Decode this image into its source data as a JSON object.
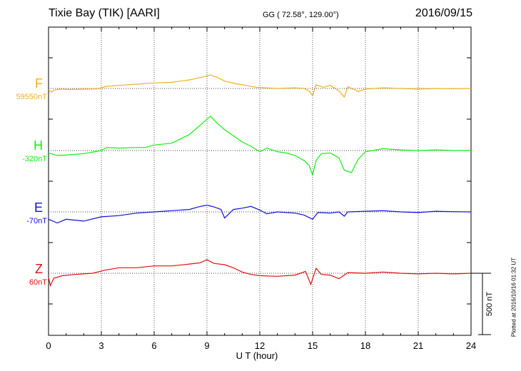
{
  "header": {
    "title": "Tixie Bay (TIK)  [AARI]",
    "coords": "GG ( 72.58°, 129.00°)",
    "date": "2016/09/15"
  },
  "scale_label": "500 nT",
  "plotted_note": "Plotted at 2016/10/16 01:32 UT",
  "chart_data": {
    "type": "line",
    "xlabel": "U T (hour)",
    "xlim": [
      0,
      24
    ],
    "x_ticks": [
      "0",
      "3",
      "6",
      "9",
      "12",
      "15",
      "18",
      "21",
      "24"
    ],
    "scale_bar_nT": 500,
    "colors": {
      "F": "#f0b020",
      "H": "#11ee11",
      "E": "#1010dd",
      "Z": "#e01010"
    },
    "series": [
      {
        "name": "F",
        "baseline": "59550nT",
        "color": "#f0b020",
        "points": [
          [
            0,
            -10
          ],
          [
            0.15,
            -30
          ],
          [
            0.3,
            -15
          ],
          [
            0.6,
            -5
          ],
          [
            1.2,
            -8
          ],
          [
            2,
            -6
          ],
          [
            2.8,
            -3
          ],
          [
            3.2,
            15
          ],
          [
            4,
            25
          ],
          [
            5,
            35
          ],
          [
            6,
            45
          ],
          [
            7,
            50
          ],
          [
            8,
            70
          ],
          [
            8.8,
            95
          ],
          [
            9.2,
            110
          ],
          [
            9.6,
            90
          ],
          [
            10,
            60
          ],
          [
            10.6,
            40
          ],
          [
            11.2,
            25
          ],
          [
            11.8,
            10
          ],
          [
            12.3,
            5
          ],
          [
            13,
            0
          ],
          [
            14,
            5
          ],
          [
            14.5,
            0
          ],
          [
            14.8,
            -20
          ],
          [
            15,
            -60
          ],
          [
            15.2,
            30
          ],
          [
            15.6,
            10
          ],
          [
            16,
            25
          ],
          [
            16.5,
            -20
          ],
          [
            16.8,
            -70
          ],
          [
            17,
            15
          ],
          [
            17.3,
            -5
          ],
          [
            17.6,
            -25
          ],
          [
            18,
            -5
          ],
          [
            19,
            5
          ],
          [
            20,
            0
          ],
          [
            21,
            -5
          ],
          [
            22,
            0
          ],
          [
            23,
            -2
          ],
          [
            24,
            0
          ]
        ]
      },
      {
        "name": "H",
        "baseline": "-320nT",
        "color": "#11ee11",
        "points": [
          [
            0,
            -20
          ],
          [
            0.5,
            -40
          ],
          [
            1.2,
            -35
          ],
          [
            2,
            -25
          ],
          [
            3,
            0
          ],
          [
            3.3,
            25
          ],
          [
            4,
            20
          ],
          [
            5,
            25
          ],
          [
            5.5,
            25
          ],
          [
            6,
            45
          ],
          [
            7,
            60
          ],
          [
            8,
            130
          ],
          [
            8.8,
            230
          ],
          [
            9.2,
            280
          ],
          [
            9.6,
            220
          ],
          [
            10,
            170
          ],
          [
            10.5,
            120
          ],
          [
            11,
            70
          ],
          [
            11.5,
            35
          ],
          [
            12,
            -10
          ],
          [
            12.4,
            20
          ],
          [
            13,
            -10
          ],
          [
            13.5,
            -20
          ],
          [
            14,
            -40
          ],
          [
            14.5,
            -80
          ],
          [
            14.8,
            -120
          ],
          [
            15,
            -200
          ],
          [
            15.2,
            -80
          ],
          [
            15.5,
            -25
          ],
          [
            16,
            -20
          ],
          [
            16.5,
            -60
          ],
          [
            16.8,
            -160
          ],
          [
            17.2,
            -180
          ],
          [
            17.6,
            -70
          ],
          [
            18,
            -10
          ],
          [
            19,
            15
          ],
          [
            20,
            5
          ],
          [
            21,
            0
          ],
          [
            22,
            5
          ],
          [
            23,
            0
          ],
          [
            24,
            2
          ]
        ]
      },
      {
        "name": "E",
        "baseline": "-70nT",
        "color": "#1010dd",
        "points": [
          [
            0,
            -60
          ],
          [
            0.5,
            -90
          ],
          [
            1,
            -60
          ],
          [
            2,
            -75
          ],
          [
            3,
            -40
          ],
          [
            4,
            -30
          ],
          [
            5,
            -10
          ],
          [
            6,
            0
          ],
          [
            7,
            10
          ],
          [
            8,
            20
          ],
          [
            8.5,
            40
          ],
          [
            9,
            55
          ],
          [
            9.4,
            40
          ],
          [
            9.8,
            20
          ],
          [
            10,
            -50
          ],
          [
            10.5,
            20
          ],
          [
            11,
            30
          ],
          [
            11.5,
            45
          ],
          [
            12,
            15
          ],
          [
            12.4,
            -15
          ],
          [
            13,
            0
          ],
          [
            14,
            -10
          ],
          [
            14.5,
            -25
          ],
          [
            15,
            -60
          ],
          [
            15.3,
            -5
          ],
          [
            16,
            -10
          ],
          [
            16.5,
            0
          ],
          [
            16.8,
            -35
          ],
          [
            17,
            0
          ],
          [
            18,
            5
          ],
          [
            19,
            10
          ],
          [
            20,
            0
          ],
          [
            21,
            -5
          ],
          [
            22,
            5
          ],
          [
            23,
            2
          ],
          [
            24,
            0
          ]
        ]
      },
      {
        "name": "Z",
        "baseline": "60nT",
        "color": "#e01010",
        "points": [
          [
            0,
            -30
          ],
          [
            0.1,
            -100
          ],
          [
            0.3,
            -40
          ],
          [
            0.8,
            -20
          ],
          [
            1.5,
            -10
          ],
          [
            2.5,
            0
          ],
          [
            3.2,
            25
          ],
          [
            4,
            45
          ],
          [
            5,
            45
          ],
          [
            6,
            60
          ],
          [
            7,
            60
          ],
          [
            8,
            75
          ],
          [
            8.6,
            85
          ],
          [
            9,
            110
          ],
          [
            9.4,
            80
          ],
          [
            10,
            70
          ],
          [
            10.5,
            45
          ],
          [
            11,
            10
          ],
          [
            11.5,
            -10
          ],
          [
            12,
            -20
          ],
          [
            13,
            -25
          ],
          [
            14,
            -15
          ],
          [
            14.6,
            15
          ],
          [
            14.9,
            -90
          ],
          [
            15.2,
            40
          ],
          [
            15.5,
            -10
          ],
          [
            16,
            -15
          ],
          [
            16.5,
            -45
          ],
          [
            17,
            5
          ],
          [
            18,
            0
          ],
          [
            19,
            10
          ],
          [
            20,
            0
          ],
          [
            21,
            -5
          ],
          [
            22,
            0
          ],
          [
            23,
            -5
          ],
          [
            24,
            0
          ]
        ]
      }
    ]
  }
}
